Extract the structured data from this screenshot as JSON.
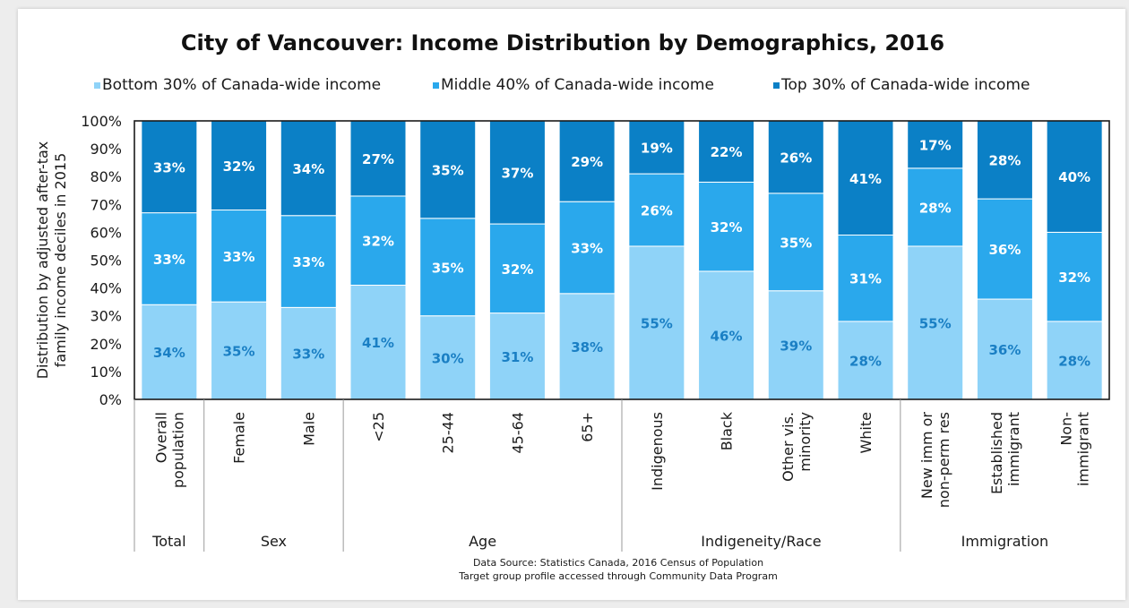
{
  "chart_data": {
    "type": "bar",
    "stacked": true,
    "title": "City of Vancouver: Income Distribution by Demographics, 2016",
    "ylabel": "Distribution by adjusted after-tax family income deciles in 2015",
    "xlabel": "",
    "ylim": [
      0,
      100
    ],
    "yticks": [
      "0%",
      "10%",
      "20%",
      "30%",
      "40%",
      "50%",
      "60%",
      "70%",
      "80%",
      "90%",
      "100%"
    ],
    "legend_position": "top",
    "categories": [
      [
        "Overall",
        "population"
      ],
      [
        "Female"
      ],
      [
        "Male"
      ],
      [
        "<25"
      ],
      [
        "25-44"
      ],
      [
        "45-64"
      ],
      [
        "65+"
      ],
      [
        "Indigenous"
      ],
      [
        "Black"
      ],
      [
        "Other vis.",
        "minority"
      ],
      [
        "White"
      ],
      [
        "New imm or",
        "non-perm res"
      ],
      [
        "Established",
        "immigrant"
      ],
      [
        "Non-",
        "immigrant"
      ]
    ],
    "groups": [
      {
        "name": "Total",
        "start": 0,
        "end": 0
      },
      {
        "name": "Sex",
        "start": 1,
        "end": 2
      },
      {
        "name": "Age",
        "start": 3,
        "end": 6
      },
      {
        "name": "Indigeneity/Race",
        "start": 7,
        "end": 10
      },
      {
        "name": "Immigration",
        "start": 11,
        "end": 13
      }
    ],
    "series": [
      {
        "name": "Bottom 30% of Canada-wide income",
        "color": "#8fd3f8",
        "label_color": "#1a7fc4",
        "values": [
          34,
          35,
          33,
          41,
          30,
          31,
          38,
          55,
          46,
          39,
          28,
          55,
          36,
          28
        ]
      },
      {
        "name": "Middle 40% of Canada-wide income",
        "color": "#2aa8ec",
        "label_color": "#ffffff",
        "values": [
          33,
          33,
          33,
          32,
          35,
          32,
          33,
          26,
          32,
          35,
          31,
          28,
          36,
          32
        ]
      },
      {
        "name": "Top 30% of Canada-wide income",
        "color": "#0b80c6",
        "label_color": "#ffffff",
        "values": [
          33,
          32,
          34,
          27,
          35,
          37,
          29,
          19,
          22,
          26,
          41,
          17,
          28,
          40
        ]
      }
    ],
    "colors": {
      "plot_border": "#1a1a1a",
      "bar_separator": "#ffffff"
    }
  },
  "footer": {
    "source_line1": "Data Source: Statistics Canada, 2016 Census of Population",
    "source_line2": "Target group profile accessed through Community Data Program"
  }
}
